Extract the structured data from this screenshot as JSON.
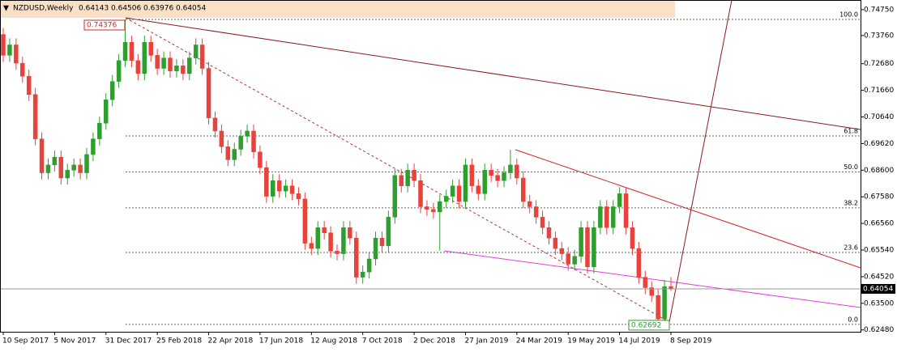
{
  "chart_data": {
    "type": "candlestick",
    "symbol": "NZDUSD,Weekly",
    "up_color": "#2e9e2e",
    "down_color": "#e8423b",
    "categories": [
      "10 Sep 2017",
      null,
      null,
      null,
      null,
      null,
      null,
      null,
      "5 Nov 2017",
      null,
      null,
      null,
      null,
      null,
      null,
      null,
      "31 Dec 2017",
      null,
      null,
      null,
      null,
      null,
      null,
      null,
      "25 Feb 2018",
      null,
      null,
      null,
      null,
      null,
      null,
      null,
      "22 Apr 2018",
      null,
      null,
      null,
      null,
      null,
      null,
      null,
      "17 Jun 2018",
      null,
      null,
      null,
      null,
      null,
      null,
      null,
      "12 Aug 2018",
      null,
      null,
      null,
      null,
      null,
      null,
      null,
      "7 Oct 2018",
      null,
      null,
      null,
      null,
      null,
      null,
      null,
      "2 Dec 2018",
      null,
      null,
      null,
      null,
      null,
      null,
      null,
      "27 Jan 2019",
      null,
      null,
      null,
      null,
      null,
      null,
      null,
      "24 Mar 2019",
      null,
      null,
      null,
      null,
      null,
      null,
      null,
      "19 May 2019",
      null,
      null,
      null,
      null,
      null,
      null,
      null,
      "14 Jul 2019",
      null,
      null,
      null,
      null,
      null,
      null,
      null,
      "8 Sep 2019"
    ],
    "candles": [
      [
        0.738,
        0.7405,
        0.7275,
        0.73
      ],
      [
        0.73,
        0.7365,
        0.7275,
        0.734
      ],
      [
        0.734,
        0.7365,
        0.7245,
        0.727
      ],
      [
        0.727,
        0.7295,
        0.7195,
        0.722
      ],
      [
        0.722,
        0.7245,
        0.7125,
        0.715
      ],
      [
        0.715,
        0.7175,
        0.6955,
        0.698
      ],
      [
        0.698,
        0.7005,
        0.6825,
        0.685
      ],
      [
        0.685,
        0.6905,
        0.6825,
        0.688
      ],
      [
        0.688,
        0.6935,
        0.6855,
        0.691
      ],
      [
        0.691,
        0.6935,
        0.6805,
        0.683
      ],
      [
        0.683,
        0.6885,
        0.6805,
        0.686
      ],
      [
        0.686,
        0.6905,
        0.6835,
        0.688
      ],
      [
        0.688,
        0.6905,
        0.6825,
        0.685
      ],
      [
        0.685,
        0.6945,
        0.6825,
        0.692
      ],
      [
        0.692,
        0.7005,
        0.6895,
        0.698
      ],
      [
        0.698,
        0.7065,
        0.6955,
        0.704
      ],
      [
        0.704,
        0.7155,
        0.7015,
        0.713
      ],
      [
        0.713,
        0.7225,
        0.7105,
        0.72
      ],
      [
        0.72,
        0.7305,
        0.7175,
        0.728
      ],
      [
        0.728,
        0.74376,
        0.7255,
        0.735
      ],
      [
        0.735,
        0.7375,
        0.7255,
        0.728
      ],
      [
        0.728,
        0.7305,
        0.7205,
        0.723
      ],
      [
        0.723,
        0.7375,
        0.7205,
        0.735
      ],
      [
        0.735,
        0.7375,
        0.7275,
        0.73
      ],
      [
        0.73,
        0.7325,
        0.7225,
        0.725
      ],
      [
        0.725,
        0.7315,
        0.7225,
        0.729
      ],
      [
        0.729,
        0.7315,
        0.7215,
        0.724
      ],
      [
        0.724,
        0.7285,
        0.7215,
        0.726
      ],
      [
        0.726,
        0.7285,
        0.7205,
        0.723
      ],
      [
        0.723,
        0.7315,
        0.7205,
        0.729
      ],
      [
        0.729,
        0.7365,
        0.7265,
        0.734
      ],
      [
        0.734,
        0.7365,
        0.7225,
        0.725
      ],
      [
        0.725,
        0.7275,
        0.7035,
        0.706
      ],
      [
        0.706,
        0.7085,
        0.6985,
        0.701
      ],
      [
        0.701,
        0.7035,
        0.6925,
        0.695
      ],
      [
        0.695,
        0.6975,
        0.6875,
        0.69
      ],
      [
        0.69,
        0.6965,
        0.6875,
        0.694
      ],
      [
        0.694,
        0.7015,
        0.6915,
        0.699
      ],
      [
        0.699,
        0.7035,
        0.6965,
        0.701
      ],
      [
        0.701,
        0.7035,
        0.6905,
        0.693
      ],
      [
        0.693,
        0.6955,
        0.6845,
        0.687
      ],
      [
        0.687,
        0.6895,
        0.6735,
        0.676
      ],
      [
        0.676,
        0.6845,
        0.6735,
        0.682
      ],
      [
        0.682,
        0.6845,
        0.6755,
        0.678
      ],
      [
        0.678,
        0.6825,
        0.6755,
        0.68
      ],
      [
        0.68,
        0.6825,
        0.6745,
        0.677
      ],
      [
        0.677,
        0.6795,
        0.6725,
        0.675
      ],
      [
        0.675,
        0.6775,
        0.6555,
        0.658
      ],
      [
        0.658,
        0.6605,
        0.6535,
        0.656
      ],
      [
        0.656,
        0.6665,
        0.6535,
        0.664
      ],
      [
        0.664,
        0.6665,
        0.6595,
        0.662
      ],
      [
        0.662,
        0.6645,
        0.6525,
        0.655
      ],
      [
        0.655,
        0.6575,
        0.6515,
        0.654
      ],
      [
        0.654,
        0.6665,
        0.6515,
        0.664
      ],
      [
        0.664,
        0.6665,
        0.6575,
        0.66
      ],
      [
        0.66,
        0.6625,
        0.6425,
        0.645
      ],
      [
        0.645,
        0.6495,
        0.6425,
        0.647
      ],
      [
        0.647,
        0.6545,
        0.6445,
        0.652
      ],
      [
        0.652,
        0.6625,
        0.6495,
        0.66
      ],
      [
        0.66,
        0.6625,
        0.6545,
        0.657
      ],
      [
        0.657,
        0.6705,
        0.6545,
        0.668
      ],
      [
        0.668,
        0.6865,
        0.6655,
        0.684
      ],
      [
        0.684,
        0.6865,
        0.6775,
        0.68
      ],
      [
        0.68,
        0.6885,
        0.6775,
        0.686
      ],
      [
        0.686,
        0.6885,
        0.6795,
        0.682
      ],
      [
        0.682,
        0.6845,
        0.6695,
        0.672
      ],
      [
        0.672,
        0.6745,
        0.6685,
        0.671
      ],
      [
        0.671,
        0.6735,
        0.6675,
        0.67
      ],
      [
        0.67,
        0.6765,
        0.6552,
        0.674
      ],
      [
        0.674,
        0.6785,
        0.6715,
        0.676
      ],
      [
        0.676,
        0.6825,
        0.6735,
        0.68
      ],
      [
        0.68,
        0.6825,
        0.6715,
        0.674
      ],
      [
        0.674,
        0.6905,
        0.6715,
        0.688
      ],
      [
        0.688,
        0.6905,
        0.6775,
        0.68
      ],
      [
        0.68,
        0.6825,
        0.6745,
        0.677
      ],
      [
        0.677,
        0.6885,
        0.6745,
        0.686
      ],
      [
        0.686,
        0.6885,
        0.6815,
        0.684
      ],
      [
        0.684,
        0.6865,
        0.6795,
        0.682
      ],
      [
        0.682,
        0.6875,
        0.6795,
        0.685
      ],
      [
        0.685,
        0.6938,
        0.6825,
        0.688
      ],
      [
        0.688,
        0.6905,
        0.6805,
        0.683
      ],
      [
        0.683,
        0.6855,
        0.6715,
        0.674
      ],
      [
        0.674,
        0.6765,
        0.6695,
        0.672
      ],
      [
        0.672,
        0.6745,
        0.6655,
        0.668
      ],
      [
        0.668,
        0.6705,
        0.6615,
        0.664
      ],
      [
        0.664,
        0.6665,
        0.6575,
        0.66
      ],
      [
        0.66,
        0.6625,
        0.6535,
        0.656
      ],
      [
        0.656,
        0.6585,
        0.6515,
        0.654
      ],
      [
        0.654,
        0.6565,
        0.6475,
        0.65
      ],
      [
        0.65,
        0.6555,
        0.6475,
        0.653
      ],
      [
        0.653,
        0.6665,
        0.6505,
        0.664
      ],
      [
        0.664,
        0.6665,
        0.6465,
        0.649
      ],
      [
        0.649,
        0.6665,
        0.6465,
        0.664
      ],
      [
        0.664,
        0.6745,
        0.6615,
        0.672
      ],
      [
        0.672,
        0.6745,
        0.6615,
        0.664
      ],
      [
        0.664,
        0.6745,
        0.6615,
        0.672
      ],
      [
        0.672,
        0.6795,
        0.6695,
        0.677
      ],
      [
        0.677,
        0.6795,
        0.6615,
        0.664
      ],
      [
        0.664,
        0.6665,
        0.6535,
        0.656
      ],
      [
        0.656,
        0.6585,
        0.6425,
        0.645
      ],
      [
        0.645,
        0.6475,
        0.6385,
        0.641
      ],
      [
        0.641,
        0.6435,
        0.6355,
        0.638
      ],
      [
        0.638,
        0.6405,
        0.62692,
        0.629
      ],
      [
        0.629,
        0.644,
        0.627,
        0.6414
      ],
      [
        0.64143,
        0.64506,
        0.63976,
        0.64054
      ]
    ],
    "ylim": [
      0.6241,
      0.7512
    ],
    "yticks": [
      {
        "value": 0.7475,
        "label": "0.74750"
      },
      {
        "value": 0.7376,
        "label": "0.73760"
      },
      {
        "value": 0.7268,
        "label": "0.72680"
      },
      {
        "value": 0.7166,
        "label": "0.71660"
      },
      {
        "value": 0.7064,
        "label": "0.70640"
      },
      {
        "value": 0.6962,
        "label": "0.69620"
      },
      {
        "value": 0.686,
        "label": "0.68600"
      },
      {
        "value": 0.6758,
        "label": "0.67580"
      },
      {
        "value": 0.6656,
        "label": "0.66560"
      },
      {
        "value": 0.6554,
        "label": "0.65540"
      },
      {
        "value": 0.6452,
        "label": "0.64520"
      },
      {
        "value": 0.635,
        "label": "0.63500"
      },
      {
        "value": 0.6248,
        "label": "0.62480"
      }
    ],
    "fib_levels": [
      {
        "label": "100.0",
        "value": 0.74376
      },
      {
        "label": "61.8",
        "value": 0.69913
      },
      {
        "label": "50.0",
        "value": 0.68534
      },
      {
        "label": "38.2",
        "value": 0.67155
      },
      {
        "label": "23.6",
        "value": 0.65449
      },
      {
        "label": "0.0",
        "value": 0.62692
      }
    ]
  }
}
